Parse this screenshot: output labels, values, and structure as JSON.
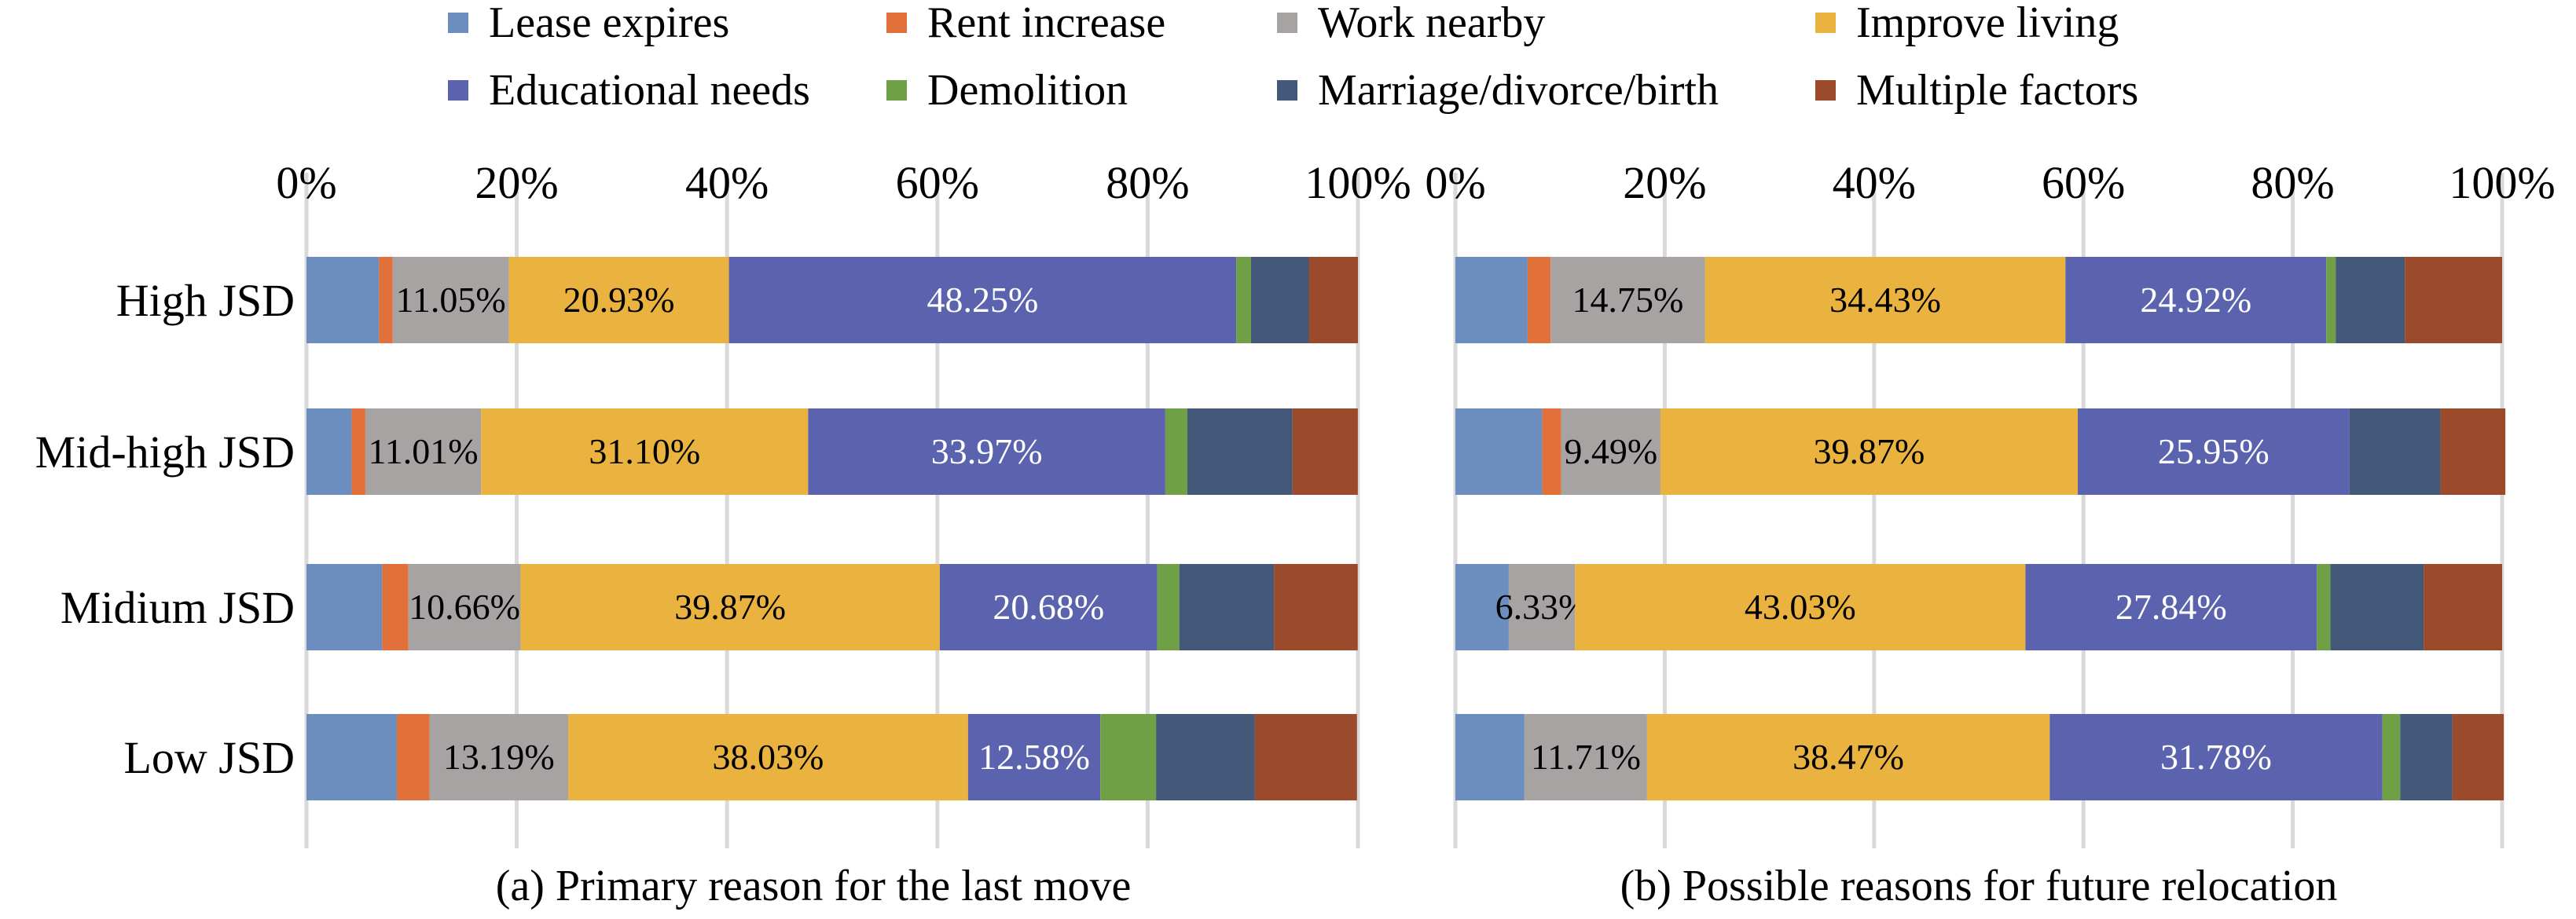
{
  "legend": {
    "items": [
      {
        "label": "Lease expires",
        "color": "#6C8EBF"
      },
      {
        "label": "Rent increase",
        "color": "#E2703A"
      },
      {
        "label": "Work nearby",
        "color": "#A8A3A3"
      },
      {
        "label": "Improve living",
        "color": "#EAB23E"
      },
      {
        "label": "Educational needs",
        "color": "#5B63AE"
      },
      {
        "label": "Demolition",
        "color": "#6FA046"
      },
      {
        "label": "Marriage/divorce/birth",
        "color": "#44587A"
      },
      {
        "label": "Multiple factors",
        "color": "#9C4A2C"
      }
    ]
  },
  "chart_data": [
    {
      "type": "bar",
      "orientation": "horizontal",
      "stacked": "percent",
      "caption": "(a) Primary reason for the last move",
      "categories": [
        "High JSD",
        "Mid-high JSD",
        "Midium JSD",
        "Low JSD"
      ],
      "xlim": [
        0,
        100
      ],
      "ticks": [
        "0%",
        "20%",
        "40%",
        "60%",
        "80%",
        "100%"
      ],
      "grid": true,
      "legend_position": "top",
      "series": [
        {
          "name": "Lease expires",
          "values": [
            6.9,
            4.3,
            7.2,
            8.6
          ]
        },
        {
          "name": "Rent increase",
          "values": [
            1.3,
            1.3,
            2.5,
            3.1
          ]
        },
        {
          "name": "Work nearby",
          "values": [
            11.05,
            11.01,
            10.66,
            13.19
          ]
        },
        {
          "name": "Improve living",
          "values": [
            20.93,
            31.1,
            39.87,
            38.03
          ]
        },
        {
          "name": "Educational needs",
          "values": [
            48.25,
            33.97,
            20.68,
            12.58
          ]
        },
        {
          "name": "Demolition",
          "values": [
            1.4,
            2.1,
            2.1,
            5.3
          ]
        },
        {
          "name": "Marriage/divorce/birth",
          "values": [
            5.5,
            10.0,
            9.0,
            9.4
          ]
        },
        {
          "name": "Multiple factors",
          "values": [
            4.67,
            6.21,
            7.97,
            9.71
          ]
        }
      ],
      "data_labels": [
        [
          null,
          null,
          "11.05%",
          "20.93%",
          "48.25%",
          null,
          null,
          null
        ],
        [
          null,
          null,
          "11.01%",
          "31.10%",
          "33.97%",
          null,
          null,
          null
        ],
        [
          null,
          null,
          "10.66%",
          "39.87%",
          "20.68%",
          null,
          null,
          null
        ],
        [
          null,
          null,
          "13.19%",
          "38.03%",
          "12.58%",
          null,
          null,
          null
        ]
      ]
    },
    {
      "type": "bar",
      "orientation": "horizontal",
      "stacked": "percent",
      "caption": "(b) Possible reasons for future relocation",
      "categories": [
        "High JSD",
        "Mid-high JSD",
        "Midium JSD",
        "Low JSD"
      ],
      "xlim": [
        0,
        100
      ],
      "ticks": [
        "0%",
        "20%",
        "40%",
        "60%",
        "80%",
        "100%"
      ],
      "grid": true,
      "legend_position": "top",
      "series": [
        {
          "name": "Lease expires",
          "values": [
            6.9,
            8.3,
            5.1,
            6.6
          ]
        },
        {
          "name": "Rent increase",
          "values": [
            2.2,
            1.8,
            0.0,
            0.0
          ]
        },
        {
          "name": "Work nearby",
          "values": [
            14.75,
            9.49,
            6.33,
            11.71
          ]
        },
        {
          "name": "Improve living",
          "values": [
            34.43,
            39.87,
            43.03,
            38.47
          ]
        },
        {
          "name": "Educational needs",
          "values": [
            24.92,
            25.95,
            27.84,
            31.78
          ]
        },
        {
          "name": "Demolition",
          "values": [
            0.9,
            0.0,
            1.3,
            1.7
          ]
        },
        {
          "name": "Marriage/divorce/birth",
          "values": [
            6.6,
            8.7,
            8.9,
            5.0
          ]
        },
        {
          "name": "Multiple factors",
          "values": [
            9.3,
            6.2,
            7.5,
            4.9
          ]
        }
      ],
      "data_labels": [
        [
          null,
          null,
          "14.75%",
          "34.43%",
          "24.92%",
          null,
          null,
          null
        ],
        [
          null,
          null,
          "9.49%",
          "39.87%",
          "25.95%",
          null,
          null,
          null
        ],
        [
          null,
          null,
          "6.33%",
          "43.03%",
          "27.84%",
          null,
          null,
          null
        ],
        [
          null,
          null,
          "11.71%",
          "38.47%",
          "31.78%",
          null,
          null,
          null
        ]
      ]
    }
  ]
}
